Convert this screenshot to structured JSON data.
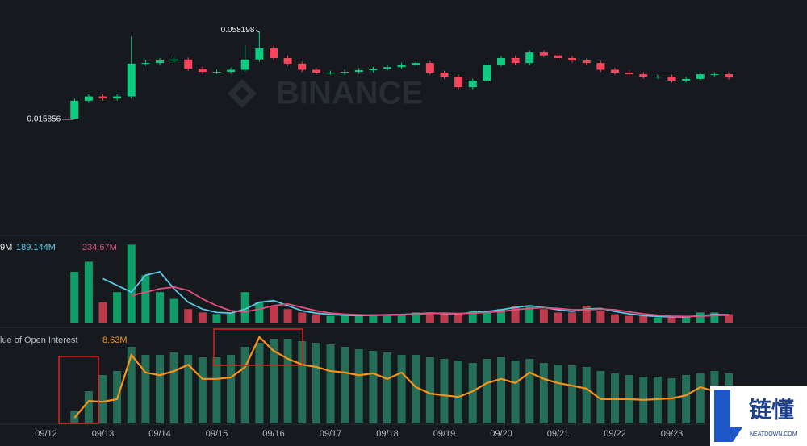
{
  "chart_data": [
    {
      "type": "candlestick",
      "categories": [
        "09/12",
        null,
        null,
        null,
        "09/13",
        null,
        null,
        null,
        "09/14",
        null,
        null,
        null,
        "09/15",
        null,
        null,
        null,
        "09/16",
        null,
        null,
        null,
        "09/17",
        null,
        null,
        null,
        "09/18",
        null,
        null,
        null,
        "09/19",
        null,
        null,
        null,
        "09/20",
        null,
        null,
        null,
        "09/21",
        null,
        null,
        null,
        "09/22",
        null,
        null,
        null,
        "09/23",
        null,
        null,
        null,
        null
      ],
      "open": [
        null,
        null,
        0.0162,
        0.0249,
        0.027,
        0.026,
        0.027,
        0.043,
        0.0433,
        0.0445,
        0.045,
        0.0405,
        0.039,
        0.039,
        0.04,
        0.045,
        0.0504,
        0.0457,
        0.043,
        0.04,
        0.0386,
        0.0386,
        0.039,
        0.0398,
        0.0405,
        0.0413,
        0.0425,
        0.0433,
        0.0386,
        0.0366,
        0.0315,
        0.0347,
        0.0425,
        0.0457,
        0.0433,
        0.0484,
        0.047,
        0.0457,
        0.0445,
        0.0433,
        0.04,
        0.0386,
        0.0378,
        0.0366,
        0.0366,
        0.0347,
        0.0355,
        0.0378,
        0.0378
      ],
      "high": [
        null,
        null,
        0.026,
        0.028,
        0.028,
        0.028,
        0.0562,
        0.0448,
        0.0458,
        0.0465,
        0.046,
        0.0415,
        0.04,
        0.041,
        0.052,
        0.058198,
        0.0518,
        0.047,
        0.044,
        0.041,
        0.0396,
        0.04,
        0.0408,
        0.0415,
        0.0423,
        0.0435,
        0.0443,
        0.0443,
        0.0396,
        0.0376,
        0.0357,
        0.0435,
        0.0467,
        0.0467,
        0.0494,
        0.0494,
        0.048,
        0.0467,
        0.0455,
        0.0443,
        0.041,
        0.0396,
        0.0388,
        0.0376,
        0.0376,
        0.0365,
        0.0388,
        0.0388,
        0.0388
      ],
      "low": [
        null,
        null,
        0.015856,
        0.0239,
        0.025,
        0.025,
        0.026,
        0.042,
        0.0423,
        0.0435,
        0.0395,
        0.038,
        0.038,
        0.038,
        0.039,
        0.044,
        0.0447,
        0.042,
        0.039,
        0.0376,
        0.0376,
        0.0376,
        0.038,
        0.0388,
        0.0395,
        0.0403,
        0.0415,
        0.0376,
        0.0356,
        0.0305,
        0.0305,
        0.0337,
        0.0415,
        0.0423,
        0.0423,
        0.046,
        0.0447,
        0.0435,
        0.0423,
        0.039,
        0.0376,
        0.0368,
        0.0356,
        0.0356,
        0.0337,
        0.0337,
        0.0345,
        0.0368,
        0.0352
      ],
      "close": [
        null,
        null,
        0.0249,
        0.027,
        0.026,
        0.027,
        0.043,
        0.0433,
        0.0445,
        0.045,
        0.0405,
        0.039,
        0.039,
        0.04,
        0.045,
        0.0504,
        0.0457,
        0.043,
        0.04,
        0.0386,
        0.0386,
        0.039,
        0.0398,
        0.0405,
        0.0413,
        0.0425,
        0.0433,
        0.0386,
        0.0366,
        0.0315,
        0.0347,
        0.0425,
        0.0457,
        0.0433,
        0.0484,
        0.047,
        0.0457,
        0.0445,
        0.0433,
        0.04,
        0.0386,
        0.0378,
        0.0366,
        0.0366,
        0.0347,
        0.0355,
        0.0378,
        0.0378,
        0.0362
      ],
      "ylim": [
        -0.04,
        0.074
      ],
      "up_color": "#0ecb81",
      "down_color": "#f6465d",
      "watermark": "BINANCE"
    },
    {
      "type": "bar",
      "legend_texts": [
        "9M"
      ],
      "values": [
        null,
        null,
        1500,
        1800,
        600,
        900,
        2300,
        1400,
        900,
        700,
        400,
        300,
        250,
        300,
        900,
        600,
        500,
        400,
        300,
        250,
        200,
        200,
        220,
        250,
        200,
        250,
        300,
        300,
        250,
        250,
        350,
        350,
        400,
        500,
        500,
        400,
        300,
        300,
        500,
        350,
        250,
        200,
        200,
        150,
        150,
        200,
        300,
        300,
        250
      ],
      "series": [
        {
          "name": "189.144M",
          "color": "#5ac8e0",
          "values": [
            null,
            null,
            null,
            null,
            1300,
            1100,
            900,
            1400,
            1500,
            1000,
            600,
            400,
            300,
            280,
            400,
            600,
            650,
            500,
            350,
            280,
            240,
            220,
            210,
            220,
            230,
            240,
            260,
            280,
            270,
            260,
            300,
            330,
            380,
            450,
            500,
            450,
            380,
            330,
            400,
            420,
            330,
            260,
            210,
            180,
            170,
            170,
            200,
            240,
            230
          ]
        },
        {
          "name": "234.67M",
          "color": "#e0507f",
          "values": [
            null,
            null,
            null,
            null,
            null,
            null,
            800,
            900,
            1000,
            1050,
            950,
            700,
            500,
            350,
            320,
            400,
            500,
            550,
            450,
            350,
            280,
            250,
            230,
            220,
            220,
            230,
            250,
            270,
            280,
            270,
            280,
            300,
            330,
            380,
            420,
            440,
            420,
            380,
            380,
            400,
            380,
            320,
            260,
            220,
            190,
            180,
            190,
            210,
            220
          ]
        }
      ],
      "ylim": [
        0,
        2500
      ]
    },
    {
      "type": "bar",
      "title": "lue of Open Interest",
      "color": "#2b8a6a",
      "values": [
        null,
        null,
        15,
        40,
        60,
        65,
        95,
        85,
        85,
        88,
        85,
        82,
        82,
        85,
        95,
        100,
        105,
        105,
        102,
        100,
        98,
        95,
        92,
        90,
        88,
        85,
        85,
        82,
        80,
        78,
        75,
        80,
        82,
        78,
        80,
        75,
        73,
        72,
        70,
        65,
        62,
        60,
        58,
        58,
        56,
        60,
        62,
        65,
        62
      ],
      "ylim": [
        0,
        115
      ],
      "series": [
        {
          "name": "8.63M",
          "color": "#f7931a",
          "axis": "y2",
          "values": [
            null,
            null,
            1.5,
            6.0,
            5.8,
            6.5,
            18.3,
            13.6,
            12.9,
            14.0,
            15.7,
            11.9,
            11.9,
            12.3,
            15.1,
            23.1,
            19.4,
            17.3,
            15.7,
            15.1,
            14.0,
            13.6,
            12.9,
            13.4,
            11.9,
            13.6,
            9.7,
            8.0,
            7.5,
            7.1,
            8.6,
            10.8,
            11.9,
            10.8,
            13.6,
            11.9,
            10.8,
            10.1,
            9.3,
            6.5,
            6.5,
            6.5,
            6.3,
            6.5,
            6.7,
            7.5,
            9.7,
            8.6,
            8.63
          ]
        }
      ],
      "y2lim": [
        0,
        24.8
      ]
    }
  ],
  "logo": {
    "title": "链懂",
    "subtitle": "NEATDOWN.COM"
  }
}
